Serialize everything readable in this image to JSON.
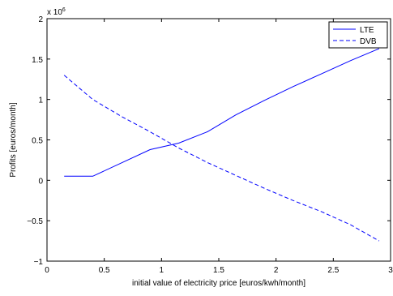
{
  "chart_data": {
    "type": "line",
    "xlabel": "initial value of electricity price [euros/kwh/month]",
    "ylabel": "Profits [euros/month]",
    "y_exponent_label": "x 10",
    "y_exponent_power": "6",
    "xlim": [
      0,
      3
    ],
    "ylim": [
      -1,
      2
    ],
    "x_ticks": [
      0,
      0.5,
      1,
      1.5,
      2,
      2.5,
      3
    ],
    "x_tick_labels": [
      "0",
      "0.5",
      "1",
      "1.5",
      "2",
      "2.5",
      "3"
    ],
    "y_ticks": [
      -1,
      -0.5,
      0,
      0.5,
      1,
      1.5,
      2
    ],
    "y_tick_labels": [
      "−1",
      "−0.5",
      "0",
      "0.5",
      "1",
      "1.5",
      "2"
    ],
    "grid": false,
    "legend_position": "top-right",
    "series": [
      {
        "name": "LTE",
        "style": "solid",
        "color": "#0000ff",
        "x": [
          0.15,
          0.4,
          0.9,
          1.15,
          1.4,
          1.65,
          1.9,
          2.15,
          2.4,
          2.65,
          2.9
        ],
        "y": [
          0.05,
          0.05,
          0.38,
          0.46,
          0.6,
          0.81,
          0.99,
          1.16,
          1.32,
          1.48,
          1.63
        ]
      },
      {
        "name": "DVB",
        "style": "dashed",
        "color": "#0000ff",
        "x": [
          0.15,
          0.4,
          0.65,
          0.9,
          1.15,
          1.4,
          1.65,
          1.9,
          2.15,
          2.4,
          2.65,
          2.9
        ],
        "y": [
          1.3,
          1.0,
          0.79,
          0.6,
          0.4,
          0.22,
          0.06,
          -0.1,
          -0.25,
          -0.39,
          -0.55,
          -0.75
        ]
      }
    ]
  }
}
